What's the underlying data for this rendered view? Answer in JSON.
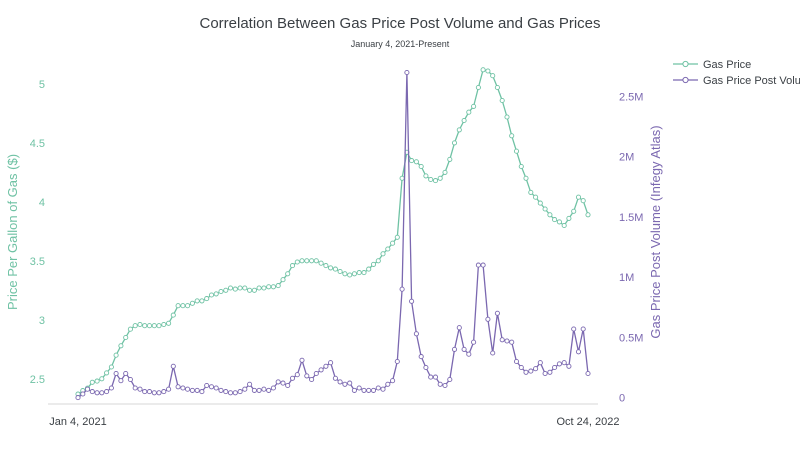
{
  "chart_data": {
    "type": "line",
    "title": "Correlation Between Gas Price Post Volume and Gas Prices",
    "subtitle": "January 4, 2021-Present",
    "x_tick_labels": [
      "Jan 4, 2021",
      "Oct 24, 2022"
    ],
    "y_left": {
      "label": "Price Per Gallon of Gas ($)",
      "range": [
        2.32,
        5.22
      ],
      "ticks": [
        2.5,
        3,
        3.5,
        4,
        4.5,
        5
      ],
      "tick_labels": [
        "2.5",
        "3",
        "3.5",
        "4",
        "4.5",
        "5"
      ]
    },
    "y_right": {
      "label": "Gas Price Post Volume (Infegy Atlas)",
      "range": [
        -20000,
        2820000
      ],
      "ticks": [
        0,
        500000,
        1000000,
        1500000,
        2000000,
        2500000
      ],
      "tick_labels": [
        "0",
        "0.5M",
        "1M",
        "1.5M",
        "2M",
        "2.5M"
      ]
    },
    "legend": {
      "position": "top-right"
    },
    "series": [
      {
        "name": "Gas Price",
        "axis": "left",
        "color": "#6fc2a4",
        "values": [
          2.37,
          2.4,
          2.42,
          2.47,
          2.48,
          2.5,
          2.55,
          2.6,
          2.7,
          2.78,
          2.85,
          2.92,
          2.95,
          2.96,
          2.95,
          2.95,
          2.95,
          2.95,
          2.96,
          2.97,
          3.04,
          3.12,
          3.12,
          3.12,
          3.14,
          3.16,
          3.16,
          3.18,
          3.21,
          3.22,
          3.24,
          3.25,
          3.27,
          3.26,
          3.27,
          3.27,
          3.25,
          3.25,
          3.27,
          3.27,
          3.28,
          3.28,
          3.29,
          3.34,
          3.39,
          3.46,
          3.49,
          3.5,
          3.5,
          3.5,
          3.5,
          3.48,
          3.46,
          3.44,
          3.43,
          3.41,
          3.39,
          3.38,
          3.39,
          3.4,
          3.4,
          3.43,
          3.47,
          3.5,
          3.56,
          3.6,
          3.65,
          3.7,
          4.2,
          4.42,
          4.35,
          4.34,
          4.3,
          4.22,
          4.19,
          4.18,
          4.2,
          4.25,
          4.36,
          4.5,
          4.61,
          4.69,
          4.76,
          4.81,
          4.97,
          5.12,
          5.11,
          5.07,
          4.97,
          4.86,
          4.72,
          4.56,
          4.43,
          4.3,
          4.2,
          4.08,
          4.04,
          3.99,
          3.94,
          3.89,
          3.85,
          3.83,
          3.8,
          3.86,
          3.92,
          4.04,
          4.01,
          3.89
        ]
      },
      {
        "name": "Gas Price Post Volume",
        "axis": "right",
        "color": "#7b68b0",
        "values": [
          0,
          30000,
          70000,
          50000,
          40000,
          40000,
          50000,
          80000,
          200000,
          140000,
          200000,
          150000,
          80000,
          70000,
          50000,
          50000,
          40000,
          40000,
          50000,
          70000,
          260000,
          90000,
          80000,
          70000,
          60000,
          60000,
          50000,
          100000,
          90000,
          80000,
          60000,
          50000,
          40000,
          40000,
          50000,
          70000,
          110000,
          60000,
          60000,
          70000,
          60000,
          80000,
          130000,
          120000,
          100000,
          160000,
          190000,
          310000,
          180000,
          150000,
          200000,
          230000,
          260000,
          290000,
          160000,
          130000,
          110000,
          120000,
          60000,
          80000,
          60000,
          60000,
          60000,
          80000,
          70000,
          110000,
          140000,
          300000,
          900000,
          2700000,
          800000,
          530000,
          340000,
          250000,
          170000,
          170000,
          110000,
          100000,
          150000,
          400000,
          580000,
          400000,
          360000,
          460000,
          1100000,
          1100000,
          650000,
          370000,
          700000,
          480000,
          470000,
          460000,
          300000,
          250000,
          210000,
          220000,
          240000,
          290000,
          200000,
          210000,
          250000,
          280000,
          290000,
          260000,
          570000,
          380000,
          570000,
          200000
        ]
      }
    ]
  }
}
